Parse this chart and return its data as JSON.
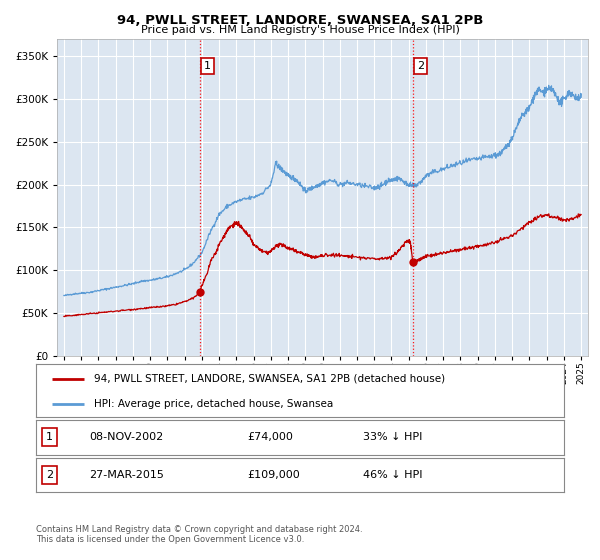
{
  "title": "94, PWLL STREET, LANDORE, SWANSEA, SA1 2PB",
  "subtitle": "Price paid vs. HM Land Registry's House Price Index (HPI)",
  "legend_line1": "94, PWLL STREET, LANDORE, SWANSEA, SA1 2PB (detached house)",
  "legend_line2": "HPI: Average price, detached house, Swansea",
  "footer": "Contains HM Land Registry data © Crown copyright and database right 2024.\nThis data is licensed under the Open Government Licence v3.0.",
  "transaction1_date": "08-NOV-2002",
  "transaction1_price": 74000,
  "transaction1_label": "33% ↓ HPI",
  "transaction2_date": "27-MAR-2015",
  "transaction2_price": 109000,
  "transaction2_label": "46% ↓ HPI",
  "transaction1_x": 2002.87,
  "transaction2_x": 2015.24,
  "hpi_color": "#5b9bd5",
  "price_color": "#c00000",
  "background_color": "#dce6f1",
  "plot_bg": "#ffffff",
  "ylim": [
    0,
    370000
  ],
  "xlim_start": 1994.6,
  "xlim_end": 2025.4,
  "hpi_points": [
    [
      1995.0,
      70000
    ],
    [
      1995.5,
      72000
    ],
    [
      1996.0,
      73000
    ],
    [
      1996.5,
      74000
    ],
    [
      1997.0,
      76000
    ],
    [
      1997.5,
      78000
    ],
    [
      1998.0,
      80000
    ],
    [
      1998.5,
      82000
    ],
    [
      1999.0,
      84000
    ],
    [
      1999.5,
      87000
    ],
    [
      2000.0,
      88000
    ],
    [
      2000.5,
      90000
    ],
    [
      2001.0,
      92000
    ],
    [
      2001.5,
      96000
    ],
    [
      2002.0,
      100000
    ],
    [
      2002.5,
      108000
    ],
    [
      2003.0,
      120000
    ],
    [
      2003.5,
      145000
    ],
    [
      2004.0,
      165000
    ],
    [
      2004.5,
      175000
    ],
    [
      2005.0,
      180000
    ],
    [
      2005.5,
      183000
    ],
    [
      2006.0,
      185000
    ],
    [
      2006.5,
      190000
    ],
    [
      2007.0,
      200000
    ],
    [
      2007.3,
      225000
    ],
    [
      2007.5,
      220000
    ],
    [
      2007.8,
      215000
    ],
    [
      2008.0,
      210000
    ],
    [
      2008.3,
      208000
    ],
    [
      2008.5,
      205000
    ],
    [
      2008.8,
      198000
    ],
    [
      2009.0,
      192000
    ],
    [
      2009.3,
      195000
    ],
    [
      2009.5,
      197000
    ],
    [
      2009.8,
      200000
    ],
    [
      2010.0,
      202000
    ],
    [
      2010.5,
      205000
    ],
    [
      2011.0,
      200000
    ],
    [
      2011.5,
      202000
    ],
    [
      2012.0,
      200000
    ],
    [
      2012.5,
      198000
    ],
    [
      2013.0,
      196000
    ],
    [
      2013.3,
      198000
    ],
    [
      2013.5,
      200000
    ],
    [
      2013.8,
      205000
    ],
    [
      2014.0,
      205000
    ],
    [
      2014.3,
      207000
    ],
    [
      2014.5,
      207000
    ],
    [
      2014.8,
      202000
    ],
    [
      2015.0,
      200000
    ],
    [
      2015.3,
      198000
    ],
    [
      2015.5,
      200000
    ],
    [
      2015.8,
      205000
    ],
    [
      2016.0,
      210000
    ],
    [
      2016.5,
      215000
    ],
    [
      2017.0,
      218000
    ],
    [
      2017.5,
      222000
    ],
    [
      2018.0,
      225000
    ],
    [
      2018.5,
      228000
    ],
    [
      2019.0,
      230000
    ],
    [
      2019.5,
      232000
    ],
    [
      2020.0,
      234000
    ],
    [
      2020.3,
      236000
    ],
    [
      2020.5,
      240000
    ],
    [
      2020.8,
      248000
    ],
    [
      2021.0,
      255000
    ],
    [
      2021.3,
      268000
    ],
    [
      2021.5,
      278000
    ],
    [
      2021.8,
      285000
    ],
    [
      2022.0,
      290000
    ],
    [
      2022.3,
      305000
    ],
    [
      2022.5,
      310000
    ],
    [
      2022.8,
      308000
    ],
    [
      2023.0,
      310000
    ],
    [
      2023.3,
      312000
    ],
    [
      2023.5,
      305000
    ],
    [
      2023.8,
      295000
    ],
    [
      2024.0,
      300000
    ],
    [
      2024.3,
      308000
    ],
    [
      2024.5,
      305000
    ],
    [
      2024.8,
      300000
    ],
    [
      2025.0,
      302000
    ]
  ],
  "red_points": [
    [
      1995.0,
      46000
    ],
    [
      1995.5,
      47000
    ],
    [
      1996.0,
      48000
    ],
    [
      1996.5,
      49000
    ],
    [
      1997.0,
      50000
    ],
    [
      1997.5,
      51000
    ],
    [
      1998.0,
      52000
    ],
    [
      1998.5,
      53000
    ],
    [
      1999.0,
      54000
    ],
    [
      1999.5,
      55000
    ],
    [
      2000.0,
      56000
    ],
    [
      2000.5,
      57000
    ],
    [
      2001.0,
      58000
    ],
    [
      2001.5,
      60000
    ],
    [
      2002.0,
      63000
    ],
    [
      2002.5,
      67000
    ],
    [
      2002.87,
      74000
    ],
    [
      2003.0,
      82000
    ],
    [
      2003.3,
      95000
    ],
    [
      2003.5,
      110000
    ],
    [
      2003.8,
      120000
    ],
    [
      2004.0,
      130000
    ],
    [
      2004.3,
      140000
    ],
    [
      2004.5,
      148000
    ],
    [
      2004.8,
      153000
    ],
    [
      2005.0,
      155000
    ],
    [
      2005.2,
      152000
    ],
    [
      2005.5,
      145000
    ],
    [
      2005.8,
      138000
    ],
    [
      2006.0,
      130000
    ],
    [
      2006.3,
      125000
    ],
    [
      2006.5,
      122000
    ],
    [
      2006.8,
      120000
    ],
    [
      2007.0,
      122000
    ],
    [
      2007.3,
      128000
    ],
    [
      2007.5,
      130000
    ],
    [
      2007.8,
      128000
    ],
    [
      2008.0,
      126000
    ],
    [
      2008.3,
      124000
    ],
    [
      2008.5,
      122000
    ],
    [
      2008.8,
      120000
    ],
    [
      2009.0,
      118000
    ],
    [
      2009.3,
      116000
    ],
    [
      2009.5,
      115000
    ],
    [
      2009.8,
      116000
    ],
    [
      2010.0,
      117000
    ],
    [
      2010.5,
      118000
    ],
    [
      2011.0,
      117000
    ],
    [
      2011.5,
      116000
    ],
    [
      2012.0,
      115000
    ],
    [
      2012.5,
      114000
    ],
    [
      2013.0,
      113000
    ],
    [
      2013.5,
      114000
    ],
    [
      2014.0,
      115000
    ],
    [
      2014.3,
      120000
    ],
    [
      2014.5,
      125000
    ],
    [
      2014.8,
      132000
    ],
    [
      2015.0,
      135000
    ],
    [
      2015.1,
      132000
    ],
    [
      2015.24,
      109000
    ],
    [
      2015.4,
      110000
    ],
    [
      2015.6,
      112000
    ],
    [
      2015.8,
      114000
    ],
    [
      2016.0,
      116000
    ],
    [
      2016.5,
      118000
    ],
    [
      2017.0,
      120000
    ],
    [
      2017.5,
      122000
    ],
    [
      2018.0,
      124000
    ],
    [
      2018.5,
      126000
    ],
    [
      2019.0,
      128000
    ],
    [
      2019.5,
      130000
    ],
    [
      2020.0,
      132000
    ],
    [
      2020.5,
      136000
    ],
    [
      2021.0,
      140000
    ],
    [
      2021.5,
      148000
    ],
    [
      2022.0,
      156000
    ],
    [
      2022.5,
      162000
    ],
    [
      2023.0,
      165000
    ],
    [
      2023.5,
      162000
    ],
    [
      2024.0,
      158000
    ],
    [
      2024.5,
      160000
    ],
    [
      2025.0,
      165000
    ]
  ]
}
